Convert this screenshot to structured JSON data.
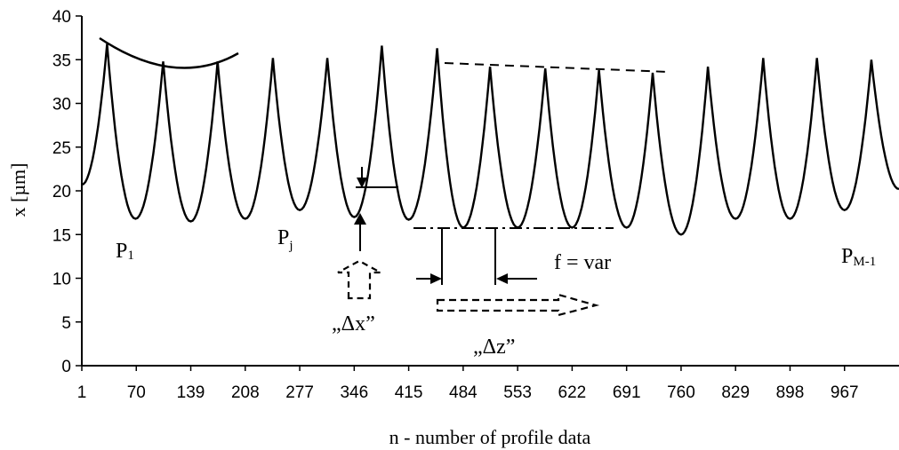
{
  "chart_data": {
    "type": "line",
    "title": "",
    "xlabel": "n - number of profile data",
    "ylabel": "x [µm]",
    "xlim": [
      1,
      1036
    ],
    "ylim": [
      0,
      40
    ],
    "x_ticks": [
      "1",
      "70",
      "139",
      "208",
      "277",
      "346",
      "415",
      "484",
      "553",
      "622",
      "691",
      "760",
      "829",
      "898",
      "967"
    ],
    "y_ticks": [
      "0",
      "5",
      "10",
      "15",
      "20",
      "25",
      "30",
      "35",
      "40"
    ],
    "grid": false,
    "legend": "none",
    "series": [
      {
        "style": "solid",
        "x": [
          1,
          33,
          69,
          104,
          139,
          173,
          208,
          243,
          277,
          312,
          346,
          381,
          415,
          451,
          484,
          518,
          553,
          588,
          622,
          656,
          691,
          724,
          760,
          794,
          829,
          864,
          898,
          932,
          967,
          1001,
          1036
        ],
        "y": [
          20.7,
          36.8,
          16.8,
          34.8,
          16.5,
          34.8,
          16.8,
          35.2,
          17.8,
          35.2,
          17.0,
          36.6,
          16.7,
          36.3,
          15.8,
          34.2,
          15.8,
          34.0,
          15.8,
          33.8,
          15.8,
          33.5,
          15.0,
          34.2,
          16.8,
          35.2,
          16.8,
          35.2,
          17.8,
          35.0,
          20.2
        ]
      }
    ],
    "annotations": {
      "peak_labels": [
        {
          "text": "P",
          "sub": "1"
        },
        {
          "text": "P",
          "sub": "j"
        },
        {
          "text": "P",
          "sub": "M-1"
        }
      ],
      "feed_label": "f = var",
      "dx_label": "„Δx”",
      "dz_label": "„Δz”"
    }
  }
}
